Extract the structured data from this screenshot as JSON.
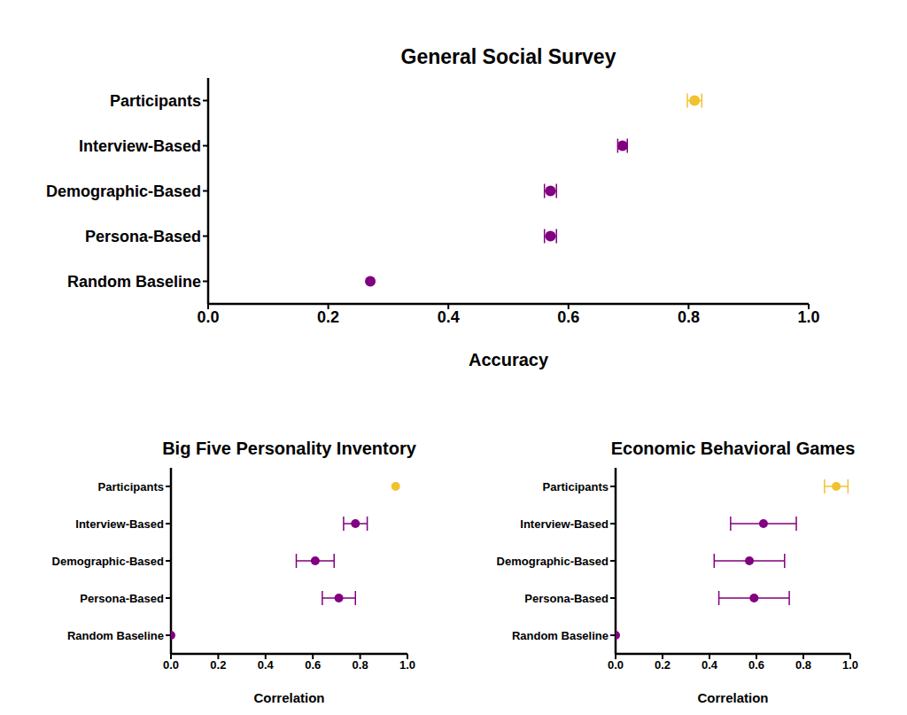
{
  "chart_data": [
    {
      "type": "scatter",
      "title": "General Social Survey",
      "xlabel": "Accuracy",
      "categories": [
        "Participants",
        "Interview-Based",
        "Demographic-Based",
        "Persona-Based",
        "Random Baseline"
      ],
      "values": [
        0.81,
        0.69,
        0.57,
        0.57,
        0.27
      ],
      "errors": [
        0.012,
        0.008,
        0.01,
        0.01,
        null
      ],
      "colors": [
        "#f2c12e",
        "#800080",
        "#800080",
        "#800080",
        "#800080"
      ],
      "xlim": [
        0,
        1
      ],
      "xticks": [
        {
          "value": 0,
          "label": "0.0"
        },
        0.2,
        0.4,
        0.6,
        0.8,
        {
          "value": 1,
          "label": "1.0"
        }
      ],
      "grid": false
    },
    {
      "type": "scatter",
      "title": "Big Five Personality Inventory",
      "xlabel": "Correlation",
      "categories": [
        "Participants",
        "Interview-Based",
        "Demographic-Based",
        "Persona-Based",
        "Random Baseline"
      ],
      "values": [
        0.95,
        0.78,
        0.61,
        0.71,
        0
      ],
      "errors": [
        null,
        0.05,
        0.08,
        0.07,
        null
      ],
      "colors": [
        "#f2c12e",
        "#800080",
        "#800080",
        "#800080",
        "#800080"
      ],
      "xlim": [
        0,
        1
      ],
      "xticks": [
        {
          "value": 0,
          "label": "0.0"
        },
        0.2,
        0.4,
        0.6,
        0.8,
        {
          "value": 1,
          "label": "1.0"
        }
      ],
      "grid": false
    },
    {
      "type": "scatter",
      "title": "Economic Behavioral Games",
      "xlabel": "Correlation",
      "categories": [
        "Participants",
        "Interview-Based",
        "Demographic-Based",
        "Persona-Based",
        "Random Baseline"
      ],
      "values": [
        0.94,
        0.63,
        0.57,
        0.59,
        0
      ],
      "errors": [
        0.05,
        0.14,
        0.15,
        0.15,
        null
      ],
      "colors": [
        "#f2c12e",
        "#800080",
        "#800080",
        "#800080",
        "#800080"
      ],
      "xlim": [
        0,
        1
      ],
      "xticks": [
        {
          "value": 0,
          "label": "0.0"
        },
        0.2,
        0.4,
        0.6,
        0.8,
        {
          "value": 1,
          "label": "1.0"
        }
      ],
      "grid": false
    }
  ]
}
